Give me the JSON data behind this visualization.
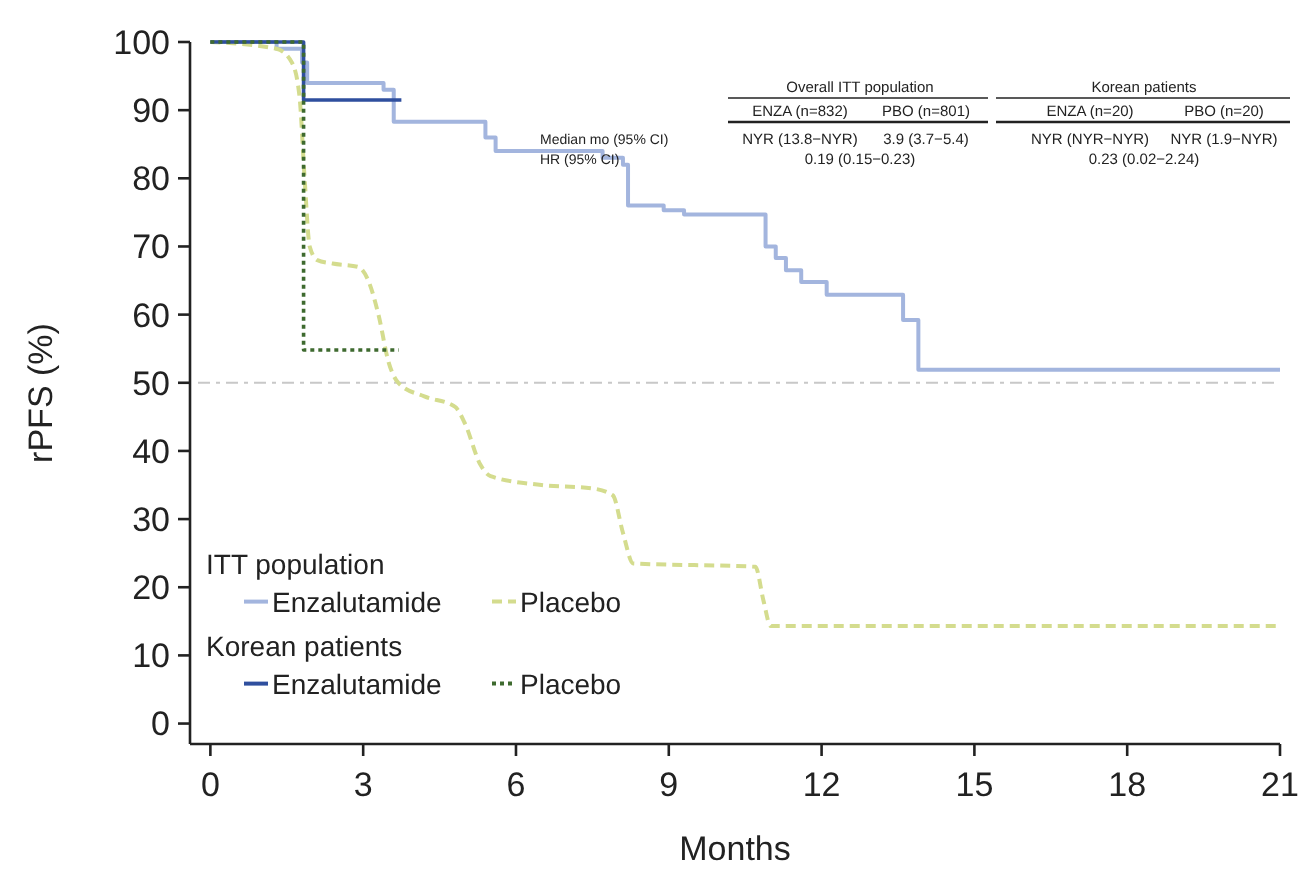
{
  "chart_data": {
    "type": "step",
    "xlabel": "Months",
    "ylabel": "rPFS (%)",
    "xlim": [
      -0.4,
      21
    ],
    "ylim": [
      -3,
      100
    ],
    "xticks": [
      0,
      3,
      6,
      9,
      12,
      15,
      18,
      21
    ],
    "yticks": [
      0,
      10,
      20,
      30,
      40,
      50,
      60,
      70,
      80,
      90,
      100
    ],
    "legend": "bottom left",
    "line_style": "solid",
    "ref_lines": [
      {
        "axis": "y",
        "value": 50,
        "color": "#c8c8c8",
        "line_style": "dashdot"
      }
    ],
    "annotations": [
      "Overall ITT population",
      "Korean patients",
      "ENZA (n=832)",
      "PBO (n=801)",
      "ENZA (n=20)",
      "PBO (n=20)",
      "Median mo (95% CI)",
      "NYR (13.8−NYR)",
      "3.9 (3.7−5.4)",
      "NYR (NYR−NYR)",
      "NYR (1.9−NYR)",
      "HR (95% CI)",
      "0.19 (0.15−0.23)",
      "0.23 (0.02−2.24)",
      "ITT population",
      "Korean patients"
    ],
    "series": [
      {
        "name": "Enzalutamide",
        "color": "#a3b5de",
        "x": [
          0,
          1.3,
          1.8,
          1.9,
          3.4,
          3.6,
          5.4,
          5.6,
          7.7,
          8.1,
          8.2,
          8.9,
          9.3,
          10.9,
          11.1,
          11.3,
          11.6,
          12.1,
          13.6,
          13.9,
          21
        ],
        "values": [
          100,
          99,
          97,
          94,
          93,
          88.3,
          86,
          84,
          83,
          82,
          76,
          75.3,
          74.7,
          70,
          68.3,
          66.5,
          64.8,
          62.9,
          59.2,
          51.9,
          51.9
        ]
      },
      {
        "name": "Placebo",
        "type": "line",
        "line_style": "dashed",
        "color": "#d4dc8e",
        "x": [
          0,
          1.3,
          1.6,
          1.75,
          1.85,
          1.95,
          2.1,
          2.4,
          2.9,
          3.1,
          3.3,
          3.5,
          3.7,
          4.2,
          4.8,
          5.0,
          5.3,
          5.5,
          6.5,
          7.5,
          7.9,
          8.1,
          8.3,
          10.7,
          10.86,
          11.0,
          21
        ],
        "values": [
          100,
          99,
          97,
          92,
          80,
          70,
          68,
          67.5,
          67,
          65,
          60,
          53,
          49.9,
          48,
          46.5,
          44,
          38,
          36.3,
          35,
          34.5,
          33.5,
          28,
          23.5,
          23,
          18,
          14.3,
          14.3
        ]
      },
      {
        "name": "Enzalutamide",
        "color": "#2f4f9e",
        "x": [
          0,
          1.83,
          3.75
        ],
        "values": [
          100,
          91.5,
          91.5
        ]
      },
      {
        "name": "Placebo",
        "line_style": "dotted",
        "color": "#3e6a2f",
        "x": [
          0,
          1.83,
          3.7
        ],
        "values": [
          100,
          54.8,
          54.8
        ]
      }
    ]
  }
}
